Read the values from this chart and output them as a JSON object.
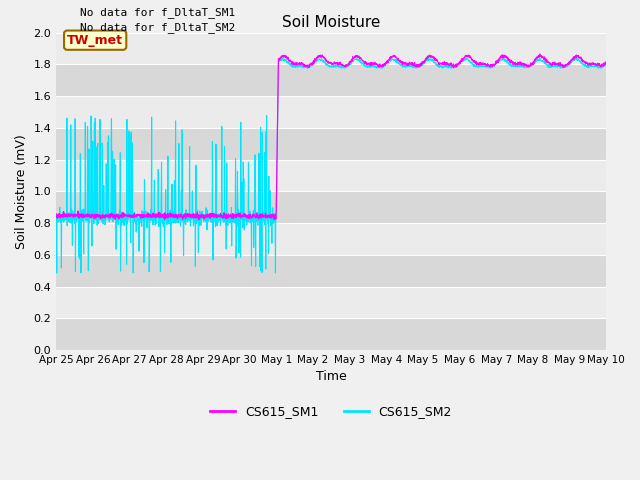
{
  "title": "Soil Moisture",
  "xlabel": "Time",
  "ylabel": "Soil Moisture (mV)",
  "ylim": [
    0.0,
    2.0
  ],
  "yticks": [
    0.0,
    0.2,
    0.4,
    0.6,
    0.8,
    1.0,
    1.2,
    1.4,
    1.6,
    1.8,
    2.0
  ],
  "xtick_labels": [
    "Apr 25",
    "Apr 26",
    "Apr 27",
    "Apr 28",
    "Apr 29",
    "Apr 30",
    "May 1",
    "May 2",
    "May 3",
    "May 4",
    "May 5",
    "May 6",
    "May 7",
    "May 8",
    "May 9",
    "May 10"
  ],
  "no_data_text": [
    "No data for f_DltaT_SM1",
    "No data for f_DltaT_SM2"
  ],
  "tw_met_label": "TW_met",
  "legend_labels": [
    "CS615_SM1",
    "CS615_SM2"
  ],
  "sm1_color": "#ff00ff",
  "sm2_color": "#00e5ff",
  "tw_met_box_color": "#ffffcc",
  "tw_met_text_color": "#cc0000",
  "tw_met_border_color": "#996600",
  "bg_color_light": "#ebebeb",
  "bg_color_dark": "#d8d8d8",
  "grid_color": "#ffffff",
  "fig_bg": "#f0f0f0"
}
